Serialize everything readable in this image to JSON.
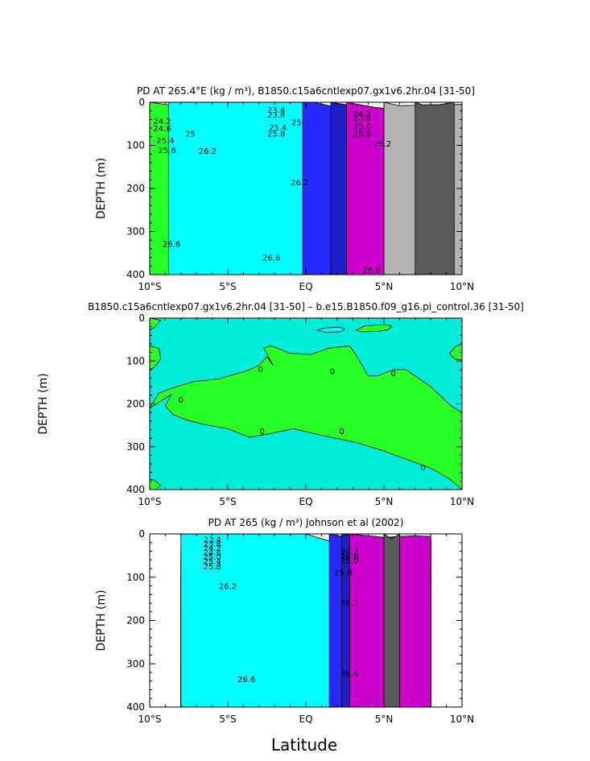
{
  "figure": {
    "xlabel": "Latitude"
  },
  "colors": {
    "purple": "#cc00cc",
    "navy": "#1e1ec8",
    "blue": "#2828ff",
    "cyan": "#00ffff",
    "teal": "#00e6c8",
    "diffcyan": "#00eed9",
    "green": "#28ff28",
    "lime": "#a0ff28",
    "yellow": "#ffff00",
    "amber": "#ffbb00",
    "orange": "#ff9900",
    "darkorange": "#ff4400",
    "red": "#ff0000",
    "darkred": "#d40000",
    "gray": "#b4b4b4",
    "darkgray": "#5a5a5a"
  },
  "chart_data": [
    {
      "id": "top",
      "type": "contour",
      "title": "PD AT 265.4°E (kg / m³), B1850.c15a6cntlexp07.gx1v6.2hr.04 [31-50]",
      "ylabel": "DEPTH (m)",
      "xlim": [
        -10,
        10
      ],
      "ylim": [
        400,
        0
      ],
      "xticks": [
        -10,
        -5,
        0,
        5,
        10
      ],
      "xticklabels": [
        "10°S",
        "5°S",
        "EQ",
        "5°N",
        "10°N"
      ],
      "yticks": [
        0,
        100,
        200,
        300,
        400
      ],
      "yticklabels": [
        "0",
        "100",
        "200",
        "300",
        "400"
      ],
      "data_xrange": [
        -10,
        10
      ],
      "layers": [
        {
          "color": "darkred",
          "lat": [
            -10,
            10
          ],
          "top": [
            400,
            400
          ]
        },
        {
          "color": "red",
          "lat": [
            -10,
            -8,
            -6,
            -4,
            -2,
            0,
            2,
            4,
            6,
            8,
            10
          ],
          "top": [
            310,
            330,
            345,
            355,
            358,
            360,
            362,
            368,
            372,
            370,
            380
          ]
        },
        {
          "color": "darkorange",
          "lat": [
            -10,
            -8,
            -6,
            -4,
            -2,
            0,
            2,
            4,
            6,
            8,
            10
          ],
          "top": [
            212,
            210,
            235,
            275,
            270,
            270,
            265,
            285,
            195,
            230,
            250
          ]
        },
        {
          "color": "orange",
          "lat": [
            -10,
            -8,
            -6,
            -4,
            -2,
            0,
            2,
            4,
            6,
            8,
            10
          ],
          "top": [
            135,
            125,
            105,
            88,
            86,
            120,
            85,
            80,
            82,
            75,
            72
          ]
        },
        {
          "color": "amber",
          "lat": [
            -10,
            -8,
            -6,
            -4,
            -2,
            0,
            2,
            4,
            6,
            8,
            10
          ],
          "top": [
            95,
            80,
            72,
            66,
            62,
            70,
            54,
            44,
            44,
            40,
            38
          ]
        },
        {
          "color": "yellow",
          "lat": [
            -10,
            -8,
            -6,
            -4,
            -2,
            0,
            2,
            4,
            6,
            8,
            10
          ],
          "top": [
            80,
            70,
            62,
            56,
            52,
            56,
            44,
            38,
            38,
            36,
            34
          ]
        },
        {
          "color": "lime",
          "lat": [
            -10,
            -8,
            -6,
            -4,
            -2,
            0,
            2,
            4,
            6,
            8,
            10
          ],
          "top": [
            62,
            58,
            52,
            48,
            44,
            46,
            38,
            35,
            35,
            33,
            31
          ]
        },
        {
          "color": "green",
          "lat": [
            -10,
            -8,
            -6,
            -4,
            -2,
            0,
            2,
            4,
            6,
            8,
            10
          ],
          "top": [
            0,
            10,
            22,
            30,
            30,
            33,
            33,
            31,
            31,
            29,
            28
          ]
        },
        {
          "color": "cyan",
          "lat": [
            -8.8,
            -8,
            -6,
            -4,
            -2,
            0,
            2,
            4,
            6,
            8,
            10
          ],
          "top": [
            0,
            0,
            0,
            0,
            0,
            0,
            14,
            23,
            25,
            24,
            22
          ]
        },
        {
          "color": "blue",
          "lat": [
            -0.2,
            0.5,
            1.5,
            3,
            4.5,
            6,
            8,
            10
          ],
          "top": [
            0,
            0,
            8,
            18,
            22,
            24,
            22,
            20
          ]
        },
        {
          "color": "navy",
          "lat": [
            1.6,
            3,
            4.5,
            6,
            8,
            10
          ],
          "top": [
            0,
            8,
            16,
            20,
            18,
            17
          ]
        },
        {
          "color": "purple",
          "lat": [
            2.6,
            3.5,
            4.5,
            6,
            8,
            10
          ],
          "top": [
            0,
            6,
            12,
            18,
            15,
            14
          ]
        },
        {
          "color": "gray",
          "lat": [
            5,
            5.5,
            6,
            8,
            10
          ],
          "top": [
            0,
            4,
            8,
            6,
            5
          ]
        },
        {
          "color": "darkgray",
          "lat": [
            7,
            7.5,
            8.5,
            9.5
          ],
          "top": [
            0,
            6,
            6,
            0
          ]
        }
      ],
      "contour_labels": [
        {
          "text": "23.4",
          "lat": -1.9,
          "depth": 17
        },
        {
          "text": "23.8",
          "lat": -1.9,
          "depth": 28
        },
        {
          "text": "24.2",
          "lat": -9.2,
          "depth": 43
        },
        {
          "text": "24.6",
          "lat": -9.2,
          "depth": 60
        },
        {
          "text": "25",
          "lat": -7.4,
          "depth": 72
        },
        {
          "text": "25.4",
          "lat": -9.0,
          "depth": 88
        },
        {
          "text": "25.8",
          "lat": -8.9,
          "depth": 110
        },
        {
          "text": "25.4",
          "lat": -1.8,
          "depth": 58
        },
        {
          "text": "25",
          "lat": -0.6,
          "depth": 46
        },
        {
          "text": "25.8",
          "lat": -1.9,
          "depth": 72
        },
        {
          "text": "26.2",
          "lat": -6.3,
          "depth": 112
        },
        {
          "text": "26.2",
          "lat": -0.4,
          "depth": 185
        },
        {
          "text": "26.2",
          "lat": 4.9,
          "depth": 95
        },
        {
          "text": "24.2",
          "lat": 3.6,
          "depth": 25
        },
        {
          "text": "23.8",
          "lat": 3.6,
          "depth": 35
        },
        {
          "text": "25.0",
          "lat": 3.6,
          "depth": 55
        },
        {
          "text": "25.8",
          "lat": 3.6,
          "depth": 72
        },
        {
          "text": "26.6",
          "lat": -8.6,
          "depth": 328
        },
        {
          "text": "26.6",
          "lat": -2.2,
          "depth": 360
        },
        {
          "text": "26.6",
          "lat": 4.2,
          "depth": 388
        }
      ]
    },
    {
      "id": "middle",
      "type": "contour",
      "title": "B1850.c15a6cntlexp07.gx1v6.2hr.04 [31-50] – b.e15.B1850.f09_g16.pi_control.36 [31-50]",
      "ylabel": "DEPTH (m)",
      "xlim": [
        -10,
        10
      ],
      "ylim": [
        400,
        0
      ],
      "xticks": [
        -10,
        -5,
        0,
        5,
        10
      ],
      "xticklabels": [
        "10°S",
        "5°S",
        "EQ",
        "5°N",
        "10°N"
      ],
      "yticks": [
        0,
        100,
        200,
        300,
        400
      ],
      "yticklabels": [
        "0",
        "100",
        "200",
        "300",
        "400"
      ],
      "data_xrange": [
        -10,
        10
      ],
      "background": "diffcyan",
      "regions": [
        {
          "color": "green",
          "lat": [
            -10,
            -9.4,
            -8.7,
            -7.2,
            -5.6,
            -3.7,
            -3,
            -2.5,
            -2.1,
            -2.7,
            -2.2,
            -1,
            0.3,
            1.5,
            2.8,
            3.2,
            4,
            4.6,
            5.6,
            6.4,
            8,
            9.3,
            10,
            10,
            9.2,
            8,
            6.5,
            5,
            3.2,
            1.2,
            -0.8,
            -2.4,
            -3.6,
            -5,
            -6.5,
            -7.6,
            -8.5,
            -9,
            -8.6
          ],
          "depth": [
            210,
            175,
            165,
            148,
            142,
            122,
            110,
            90,
            110,
            70,
            65,
            82,
            85,
            70,
            65,
            85,
            135,
            135,
            120,
            120,
            160,
            205,
            220,
            400,
            375,
            350,
            330,
            310,
            290,
            275,
            258,
            270,
            278,
            258,
            248,
            238,
            225,
            205,
            178
          ]
        },
        {
          "color": "green",
          "lat": [
            -10,
            -9.3,
            -9.7,
            -10
          ],
          "depth": [
            0,
            5,
            22,
            28
          ]
        },
        {
          "color": "green",
          "lat": [
            -10,
            -9.4,
            -9.3,
            -9.7,
            -10
          ],
          "depth": [
            65,
            70,
            95,
            115,
            120
          ]
        },
        {
          "color": "green",
          "lat": [
            -10,
            -9.6,
            -9.3,
            -9.6,
            -10
          ],
          "depth": [
            375,
            380,
            390,
            400,
            400
          ]
        },
        {
          "color": "green",
          "lat": [
            10,
            9.6,
            9.2,
            9.5,
            10
          ],
          "depth": [
            60,
            66,
            82,
            95,
            98
          ]
        },
        {
          "color": "green",
          "lat": [
            3.2,
            3.8,
            5,
            5.5,
            5.3,
            4.6,
            3.6,
            3.2
          ],
          "depth": [
            28,
            18,
            15,
            18,
            27,
            31,
            32,
            28
          ]
        },
        {
          "color": "cyan",
          "lat": [
            0.7,
            1.3,
            2.1,
            2.5,
            2.2,
            1.3,
            0.7
          ],
          "depth": [
            28,
            23,
            21,
            25,
            32,
            33,
            28
          ]
        }
      ],
      "contour_labels": [
        {
          "text": "0",
          "lat": -2.9,
          "depth": 118
        },
        {
          "text": "0",
          "lat": 1.7,
          "depth": 123
        },
        {
          "text": "0",
          "lat": 5.6,
          "depth": 128
        },
        {
          "text": "0",
          "lat": -8.0,
          "depth": 190
        },
        {
          "text": "0",
          "lat": -2.8,
          "depth": 263
        },
        {
          "text": "0",
          "lat": 2.3,
          "depth": 263
        },
        {
          "text": "0",
          "lat": 7.5,
          "depth": 347
        }
      ]
    },
    {
      "id": "bottom",
      "type": "contour",
      "title": "PD AT 265 (kg / m³) Johnson et al (2002)",
      "ylabel": "DEPTH (m)",
      "xlim": [
        -10,
        10
      ],
      "ylim": [
        400,
        0
      ],
      "xticks": [
        -10,
        -5,
        0,
        5,
        10
      ],
      "xticklabels": [
        "10°S",
        "5°S",
        "EQ",
        "5°N",
        "10°N"
      ],
      "yticks": [
        0,
        100,
        200,
        300,
        400
      ],
      "yticklabels": [
        "0",
        "100",
        "200",
        "300",
        "400"
      ],
      "data_xrange": [
        -8,
        8
      ],
      "layers": [
        {
          "color": "darkred",
          "lat": [
            -8,
            8
          ],
          "top": [
            400,
            400
          ]
        },
        {
          "color": "red",
          "lat": [
            -8,
            -6,
            -4,
            -2,
            0,
            2,
            4,
            6,
            8
          ],
          "top": [
            300,
            310,
            305,
            300,
            300,
            295,
            300,
            290,
            285
          ]
        },
        {
          "color": "darkorange",
          "lat": [
            -8,
            -6,
            -4,
            -2,
            0,
            2,
            4,
            6,
            8
          ],
          "top": [
            170,
            175,
            172,
            170,
            170,
            175,
            180,
            176,
            170
          ]
        },
        {
          "color": "orange",
          "lat": [
            -8,
            -6,
            -4,
            -2,
            0,
            2,
            4,
            6,
            8
          ],
          "top": [
            110,
            112,
            108,
            108,
            110,
            114,
            118,
            120,
            125
          ]
        },
        {
          "color": "amber",
          "lat": [
            -8,
            -6,
            -4,
            -2,
            0,
            2,
            4,
            6,
            8
          ],
          "top": [
            78,
            78,
            80,
            82,
            82,
            82,
            80,
            80,
            82
          ]
        },
        {
          "color": "yellow",
          "lat": [
            -8,
            -6,
            -4,
            -2,
            0,
            2,
            4,
            6,
            8
          ],
          "top": [
            66,
            68,
            70,
            70,
            70,
            68,
            64,
            64,
            66
          ]
        },
        {
          "color": "lime",
          "lat": [
            -8,
            -6,
            -4,
            -2,
            0,
            2,
            4,
            6,
            8
          ],
          "top": [
            54,
            56,
            58,
            58,
            58,
            55,
            50,
            52,
            54
          ]
        },
        {
          "color": "green",
          "lat": [
            -8,
            -6,
            -4,
            -2,
            0,
            2,
            4,
            6,
            8
          ],
          "top": [
            42,
            44,
            46,
            46,
            46,
            44,
            42,
            40,
            40
          ]
        },
        {
          "color": "teal",
          "lat": [
            -8,
            -6,
            -4,
            -2,
            0,
            2,
            4,
            6,
            8
          ],
          "top": [
            30,
            32,
            34,
            34,
            34,
            33,
            30,
            28,
            28
          ]
        },
        {
          "color": "cyan",
          "lat": [
            -8,
            -6,
            -4,
            -2,
            0,
            2,
            4,
            6,
            8
          ],
          "top": [
            0,
            0,
            0,
            0,
            0,
            22,
            18,
            16,
            14
          ]
        },
        {
          "color": "blue",
          "lat": [
            1.5,
            3,
            4.5,
            6,
            8
          ],
          "top": [
            0,
            10,
            14,
            16,
            14
          ]
        },
        {
          "color": "navy",
          "lat": [
            2.3,
            3.5,
            4.5,
            6,
            8
          ],
          "top": [
            0,
            6,
            10,
            12,
            10
          ]
        },
        {
          "color": "purple",
          "lat": [
            2.8,
            4,
            5,
            6,
            7,
            8
          ],
          "top": [
            0,
            4,
            8,
            6,
            4,
            6
          ]
        },
        {
          "color": "darkgray",
          "lat": [
            5,
            5.5,
            6
          ],
          "top": [
            0,
            12,
            0
          ]
        }
      ],
      "contour_labels": [
        {
          "text": "23.4",
          "lat": -6.0,
          "depth": 12
        },
        {
          "text": "23.8",
          "lat": -6.0,
          "depth": 22
        },
        {
          "text": "24.2",
          "lat": -6.0,
          "depth": 32
        },
        {
          "text": "24.6",
          "lat": -6.0,
          "depth": 42
        },
        {
          "text": "25.0",
          "lat": -6.0,
          "depth": 52
        },
        {
          "text": "25.4",
          "lat": -6.0,
          "depth": 62
        },
        {
          "text": "25.8",
          "lat": -6.0,
          "depth": 74
        },
        {
          "text": "24.2",
          "lat": 2.8,
          "depth": 40
        },
        {
          "text": "24.6",
          "lat": 2.8,
          "depth": 50
        },
        {
          "text": "25.0",
          "lat": 2.8,
          "depth": 60
        },
        {
          "text": "25.8",
          "lat": 2.4,
          "depth": 88
        },
        {
          "text": "26.2",
          "lat": -5.0,
          "depth": 120
        },
        {
          "text": "26.2",
          "lat": 2.8,
          "depth": 158
        },
        {
          "text": "26.6",
          "lat": -3.8,
          "depth": 335
        },
        {
          "text": "26.6",
          "lat": 2.8,
          "depth": 322
        }
      ]
    }
  ]
}
